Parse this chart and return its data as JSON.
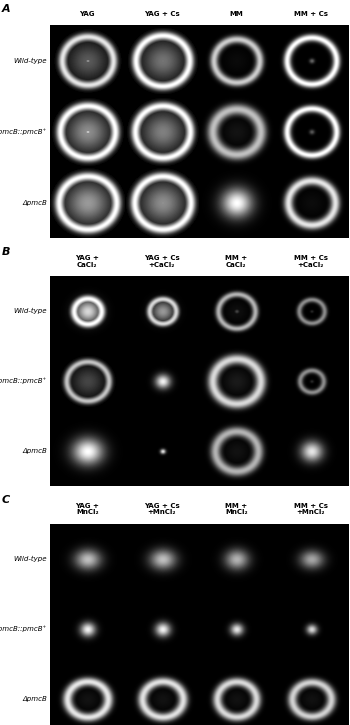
{
  "panel_labels": [
    "A",
    "B",
    "C"
  ],
  "panel_A_col_labels": [
    "YAG",
    "YAG + Cs",
    "MM",
    "MM + Cs"
  ],
  "panel_B_col_labels": [
    "YAG +\nCaCl₂",
    "YAG + Cs\n+CaCl₂",
    "MM +\nCaCl₂",
    "MM + Cs\n+CaCl₂"
  ],
  "panel_C_col_labels": [
    "YAG +\nMnCl₂",
    "YAG + Cs\n+MnCl₂",
    "MM +\nMnCl₂",
    "MM + Cs\n+MnCl₂"
  ],
  "row_labels": [
    "Wild-type",
    "ΔpmcB::pmcB⁺",
    "ΔpmcB"
  ],
  "text_color": "#000000",
  "col_label_fontsize": 5.0,
  "row_label_fontsize": 5.0,
  "panel_label_fontsize": 8,
  "fig_bg": "#ffffff"
}
